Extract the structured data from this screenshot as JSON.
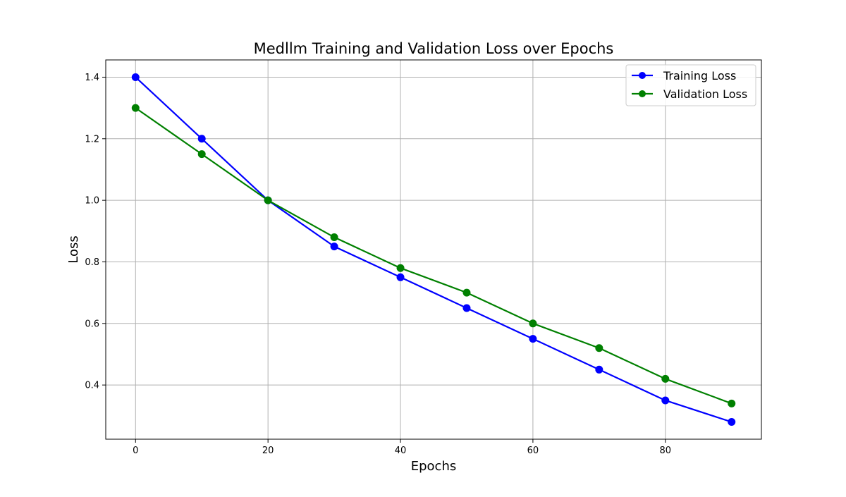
{
  "chart_data": {
    "type": "line",
    "title": "Medllm Training and Validation Loss over Epochs",
    "xlabel": "Epochs",
    "ylabel": "Loss",
    "x": [
      0,
      10,
      20,
      30,
      40,
      50,
      60,
      70,
      80,
      90
    ],
    "series": [
      {
        "name": "Training Loss",
        "color": "#0000ff",
        "marker": "circle",
        "values": [
          1.4,
          1.2,
          1.0,
          0.85,
          0.75,
          0.65,
          0.55,
          0.45,
          0.35,
          0.28
        ]
      },
      {
        "name": "Validation Loss",
        "color": "#008000",
        "marker": "circle",
        "values": [
          1.3,
          1.15,
          1.0,
          0.88,
          0.78,
          0.7,
          0.6,
          0.52,
          0.42,
          0.34
        ]
      }
    ],
    "xlim": [
      -4.5,
      94.5
    ],
    "ylim": [
      0.224,
      1.456
    ],
    "xticks": [
      0,
      20,
      40,
      60,
      80
    ],
    "yticks": [
      0.4,
      0.6,
      0.8,
      1.0,
      1.2,
      1.4
    ],
    "xtick_labels": [
      "0",
      "20",
      "40",
      "60",
      "80"
    ],
    "ytick_labels": [
      "0.4",
      "0.6",
      "0.8",
      "1.0",
      "1.2",
      "1.4"
    ],
    "grid": true,
    "legend_position": "top-right"
  }
}
